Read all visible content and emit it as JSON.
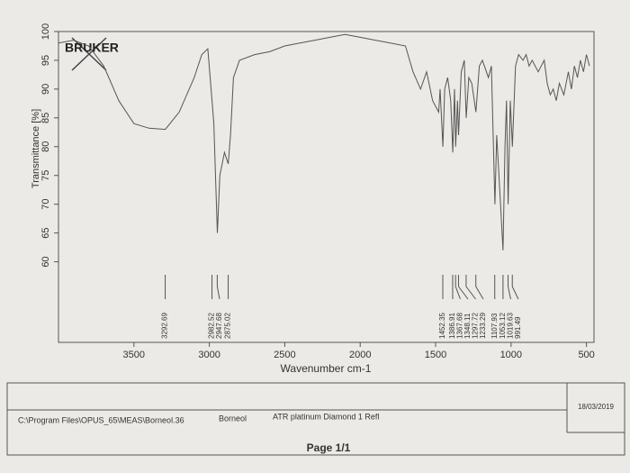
{
  "chart_data": {
    "type": "line",
    "logo": "BRUKER",
    "x_label": "Wavenumber cm-1",
    "y_label": "Transmittance [%]",
    "xlim": [
      4000,
      450
    ],
    "ylim": [
      46,
      100
    ],
    "xticks": [
      3500,
      3000,
      2500,
      2000,
      1500,
      1000,
      500
    ],
    "yticks": [
      60,
      65,
      70,
      75,
      80,
      85,
      90,
      95,
      100
    ],
    "color": "#555555",
    "x": [
      4000,
      3900,
      3800,
      3700,
      3600,
      3500,
      3400,
      3292,
      3200,
      3100,
      3050,
      3010,
      2982,
      2970,
      2947,
      2930,
      2900,
      2875,
      2860,
      2840,
      2800,
      2700,
      2600,
      2500,
      2400,
      2300,
      2200,
      2100,
      2000,
      1900,
      1800,
      1700,
      1650,
      1600,
      1560,
      1520,
      1480,
      1470,
      1452,
      1440,
      1420,
      1400,
      1386,
      1375,
      1367,
      1355,
      1348,
      1330,
      1310,
      1297,
      1280,
      1260,
      1233,
      1210,
      1190,
      1150,
      1130,
      1107,
      1095,
      1080,
      1053,
      1040,
      1030,
      1019,
      1005,
      991,
      970,
      950,
      920,
      900,
      880,
      860,
      820,
      800,
      780,
      760,
      740,
      720,
      700,
      680,
      650,
      620,
      600,
      580,
      560,
      540,
      520,
      500,
      480
    ],
    "values": [
      98,
      98.5,
      97.5,
      94,
      88,
      84,
      83.2,
      83,
      86,
      92,
      96,
      97,
      88,
      84,
      65,
      75,
      79,
      77,
      82,
      92,
      95,
      96,
      96.5,
      97.5,
      98,
      98.5,
      99,
      99.5,
      99,
      98.5,
      98,
      97.5,
      93,
      90,
      93,
      88,
      86,
      90,
      80,
      90,
      92,
      88,
      79,
      90,
      80,
      88,
      82,
      93,
      95,
      85,
      92,
      91,
      86,
      94,
      95,
      92,
      94,
      70,
      82,
      75,
      62,
      80,
      88,
      70,
      88,
      80,
      94,
      96,
      95,
      96,
      94,
      95,
      93,
      94,
      95,
      91,
      89,
      90,
      88,
      91,
      89,
      93,
      90,
      94,
      92,
      95,
      93,
      96,
      94
    ],
    "peaks": [
      3292.69,
      2982.52,
      2947.68,
      2875.02,
      1452.35,
      1386.91,
      1367.68,
      1348.11,
      1297.72,
      1233.29,
      1107.93,
      1053.12,
      1019.63,
      991.49
    ]
  },
  "footer": {
    "path": "C:\\Program Files\\OPUS_65\\MEAS\\Borneol.36",
    "sample": "Borneol",
    "method": "ATR platinum Diamond 1 Refl",
    "date": "18/03/2019",
    "page": "Page 1/1"
  }
}
